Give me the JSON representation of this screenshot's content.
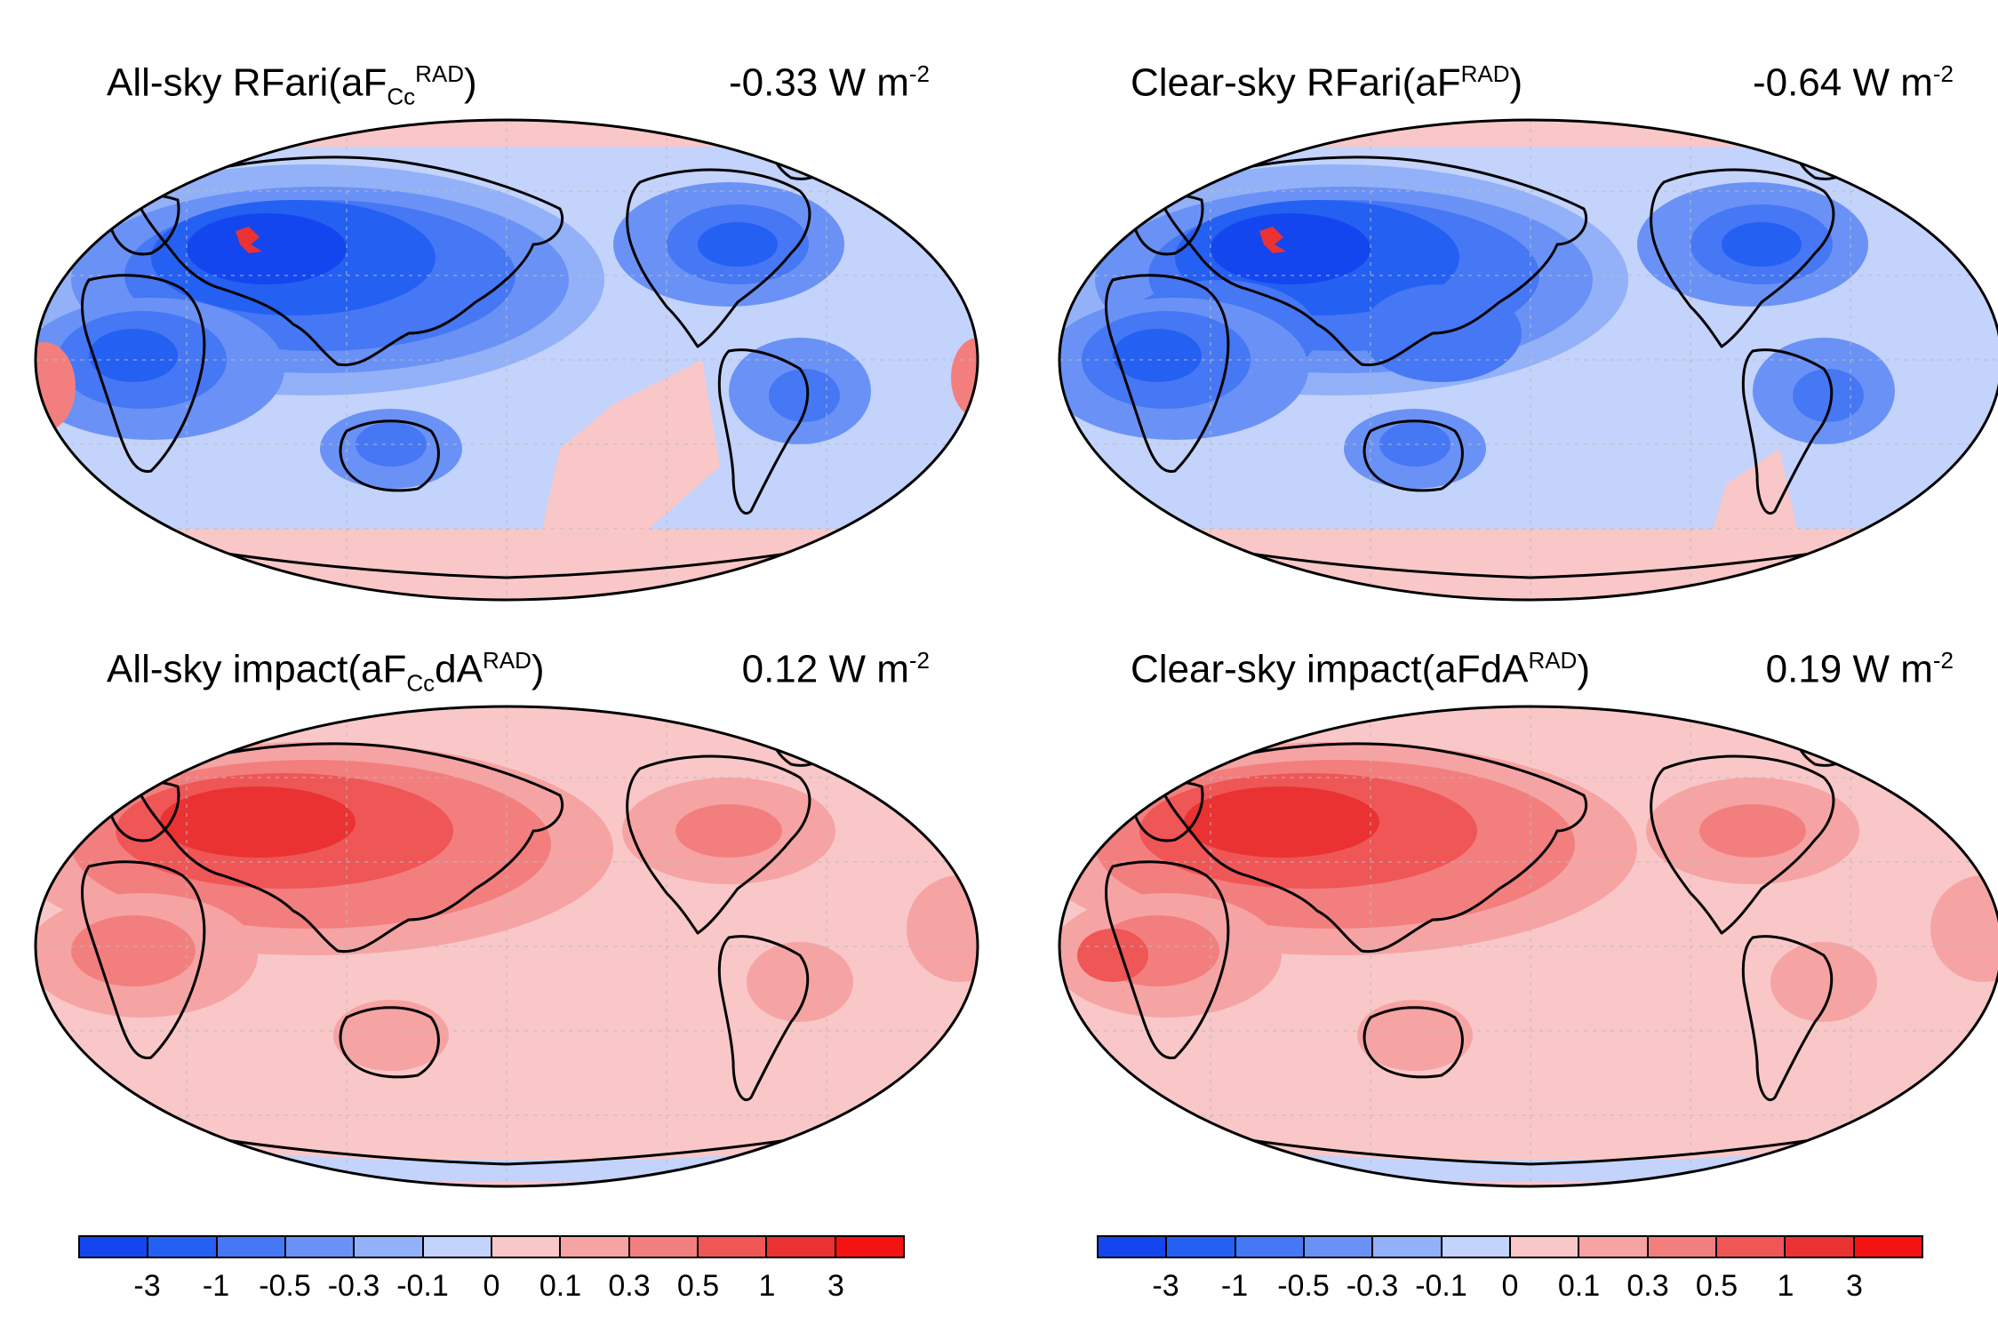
{
  "panels": [
    {
      "id": "all-sky-rfari",
      "title_main": "All-sky RFari(aF",
      "title_sub": "Cc",
      "title_sup": "RAD",
      "title_tail": "",
      "title_end": ")",
      "value": "-0.33 W m",
      "value_sup": "-2",
      "sign": "negative"
    },
    {
      "id": "clear-sky-rfari",
      "title_main": "Clear-sky RFari(aF",
      "title_sub": "",
      "title_sup": "RAD",
      "title_tail": "",
      "title_end": ")",
      "value": "-0.64 W m",
      "value_sup": "-2",
      "sign": "negative"
    },
    {
      "id": "all-sky-impact",
      "title_main": "All-sky impact(aF",
      "title_sub": "Cc",
      "title_sup": "RAD",
      "title_tail": "dA",
      "title_end": ")",
      "value": "0.12 W m",
      "value_sup": "-2",
      "sign": "positive"
    },
    {
      "id": "clear-sky-impact",
      "title_main": "Clear-sky impact(aFdA",
      "title_sub": "",
      "title_sup": "RAD",
      "title_tail": "",
      "title_end": ")",
      "value": "0.19 W m",
      "value_sup": "-2",
      "sign": "positive"
    }
  ],
  "colorbar": {
    "ticks": [
      "-3",
      "-1",
      "-0.5",
      "-0.3",
      "-0.1",
      "0",
      "0.1",
      "0.3",
      "0.5",
      "1",
      "3"
    ],
    "colors": [
      "#1446f0",
      "#2460f2",
      "#4677f4",
      "#6a92f6",
      "#93b1f8",
      "#c3d3fb",
      "#f9c7c7",
      "#f6a3a3",
      "#f37e7e",
      "#ef5656",
      "#ea3232",
      "#f51212"
    ]
  }
}
